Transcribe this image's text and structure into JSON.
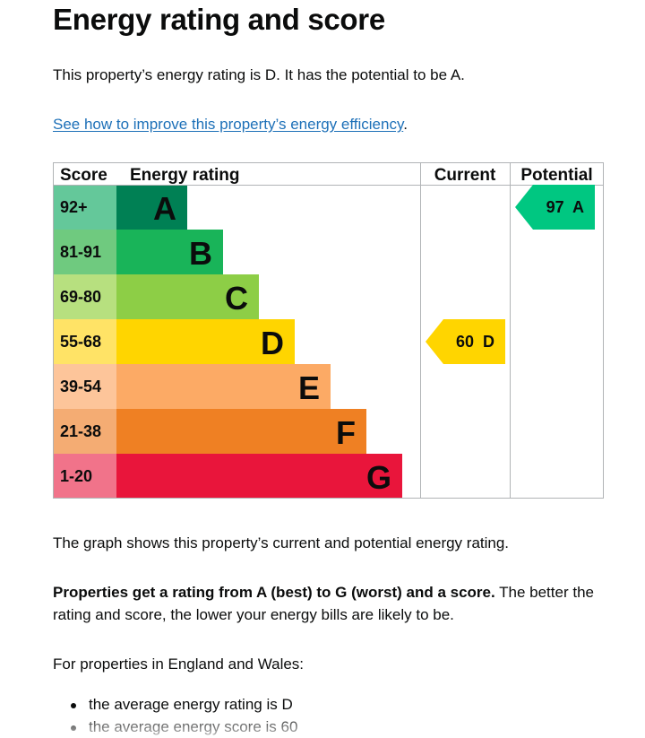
{
  "page": {
    "title": "Energy rating and score",
    "intro": "This property’s energy rating is D. It has the potential to be A.",
    "improve_link": "See how to improve this property’s energy efficiency",
    "improve_suffix": ".",
    "graph_caption": "The graph shows this property’s current and potential energy rating.",
    "ratings_bold": "Properties get a rating from A (best) to G (worst) and a score.",
    "ratings_rest": " The better the rating and score, the lower your energy bills are likely to be.",
    "england_wales": "For properties in England and Wales:",
    "averages": [
      "the average energy rating is D",
      "the average energy score is 60"
    ]
  },
  "chart_data": {
    "type": "table",
    "headers": {
      "score": "Score",
      "rating": "Energy rating",
      "current": "Current",
      "potential": "Potential"
    },
    "bands": [
      {
        "letter": "A",
        "range": "92+",
        "color": "#008054",
        "score_color": "#64c89a",
        "letter_color": "#0b0c0c",
        "scale_level": 1
      },
      {
        "letter": "B",
        "range": "81-91",
        "color": "#19b459",
        "score_color": "#6fca7f",
        "letter_color": "#0b0c0c",
        "scale_level": 2
      },
      {
        "letter": "C",
        "range": "69-80",
        "color": "#8dce46",
        "score_color": "#b7e07f",
        "letter_color": "#0b0c0c",
        "scale_level": 3
      },
      {
        "letter": "D",
        "range": "55-68",
        "color": "#ffd500",
        "score_color": "#ffe366",
        "letter_color": "#0b0c0c",
        "scale_level": 4
      },
      {
        "letter": "E",
        "range": "39-54",
        "color": "#fcaa65",
        "score_color": "#fdc59a",
        "letter_color": "#0b0c0c",
        "scale_level": 5
      },
      {
        "letter": "F",
        "range": "21-38",
        "color": "#ef8023",
        "score_color": "#f4ac73",
        "letter_color": "#0b0c0c",
        "scale_level": 6
      },
      {
        "letter": "G",
        "range": "1-20",
        "color": "#e9153b",
        "score_color": "#f1738a",
        "letter_color": "#0b0c0c",
        "scale_level": 7
      }
    ],
    "current": {
      "score": 60,
      "letter": "D",
      "label": "60  D",
      "color": "#ffd500"
    },
    "potential": {
      "score": 97,
      "letter": "A",
      "label": "97  A",
      "color": "#00c781"
    },
    "grid_color": "#b1b4b6"
  }
}
